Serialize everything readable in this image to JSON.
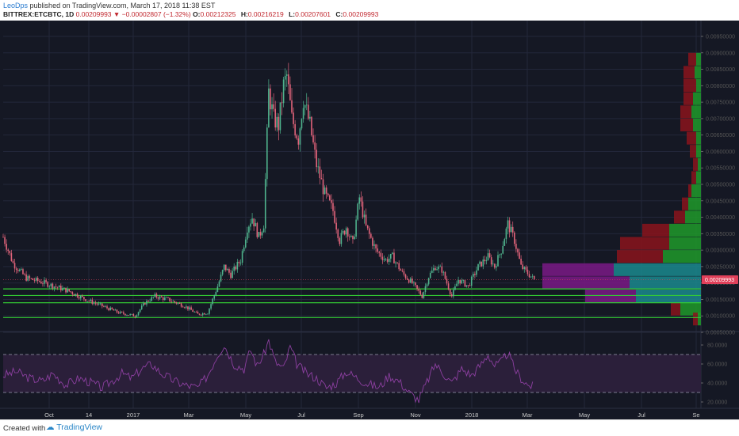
{
  "header": {
    "author": "LeoDps",
    "published": "published on TradingView.com, March 17, 2018 11:38 EST",
    "symbol": "BITTREX:ETCBTC, 1D",
    "price": "0.00209993",
    "change_arrow": "▼",
    "change": "−0.00002807 (−1.32%)",
    "o_label": "O:",
    "o_value": "0.00212325",
    "h_label": "H:",
    "h_value": "0.00216219",
    "l_label": "L:",
    "l_value": "0.00207601",
    "c_label": "C:",
    "c_value": "0.00209993"
  },
  "footer": {
    "created_with": "Created with",
    "brand": "TradingView",
    "logo_icon": "tradingview-cloud-icon"
  },
  "colors": {
    "background": "#151824",
    "up": "#4fb38d",
    "down": "#e0637a",
    "support_lines": "#33cc33",
    "rsi_line": "#8c3fa0",
    "rsi_band": "#2b1f3a",
    "last_price_badge": "#e0405a"
  },
  "chart_data": [
    {
      "type": "candlestick",
      "symbol": "BITTREX:ETCBTC",
      "interval": "1D",
      "x_ticks": [
        "Oct",
        "14",
        "2017",
        "Mar",
        "May",
        "Jul",
        "Sep",
        "Nov",
        "2018",
        "Mar",
        "May",
        "Jul",
        "Se"
      ],
      "y_ticks": [
        "0.00950000",
        "0.00900000",
        "0.00850000",
        "0.00800000",
        "0.00750000",
        "0.00700000",
        "0.00650000",
        "0.00600000",
        "0.00550000",
        "0.00500000",
        "0.00450000",
        "0.00400000",
        "0.00350000",
        "0.00300000",
        "0.00250000",
        "0.00200000",
        "0.00150000",
        "0.00100000",
        "0.00050000"
      ],
      "y_range": [
        0.0005,
        0.0098
      ],
      "last_price": "0.00209993",
      "approx_close_path": [
        [
          0.0034,
          0
        ],
        [
          0.0026,
          6
        ],
        [
          0.00215,
          14
        ],
        [
          0.00205,
          22
        ],
        [
          0.00192,
          30
        ],
        [
          0.00175,
          40
        ],
        [
          0.0015,
          50
        ],
        [
          0.0013,
          60
        ],
        [
          0.0011,
          70
        ],
        [
          0.001,
          80
        ],
        [
          0.0014,
          86
        ],
        [
          0.0016,
          92
        ],
        [
          0.0015,
          100
        ],
        [
          0.0013,
          110
        ],
        [
          0.00105,
          118
        ],
        [
          0.0011,
          124
        ],
        [
          0.0019,
          130
        ],
        [
          0.0025,
          134
        ],
        [
          0.00225,
          138
        ],
        [
          0.0027,
          144
        ],
        [
          0.0037,
          148
        ],
        [
          0.004,
          151
        ],
        [
          0.0034,
          155
        ],
        [
          0.0038,
          158
        ],
        [
          0.0078,
          161
        ],
        [
          0.007,
          164
        ],
        [
          0.0068,
          167
        ],
        [
          0.008,
          170
        ],
        [
          0.0083,
          172
        ],
        [
          0.007,
          175
        ],
        [
          0.0064,
          179
        ],
        [
          0.0076,
          182
        ],
        [
          0.0068,
          186
        ],
        [
          0.0056,
          190
        ],
        [
          0.0047,
          195
        ],
        [
          0.0042,
          200
        ],
        [
          0.0033,
          204
        ],
        [
          0.0037,
          208
        ],
        [
          0.0032,
          212
        ],
        [
          0.0046,
          216
        ],
        [
          0.0037,
          220
        ],
        [
          0.003,
          226
        ],
        [
          0.0027,
          232
        ],
        [
          0.0028,
          236
        ],
        [
          0.0023,
          242
        ],
        [
          0.002,
          248
        ],
        [
          0.0016,
          254
        ],
        [
          0.0022,
          258
        ],
        [
          0.0025,
          262
        ],
        [
          0.0024,
          266
        ],
        [
          0.0016,
          272
        ],
        [
          0.0021,
          276
        ],
        [
          0.0019,
          282
        ],
        [
          0.0025,
          288
        ],
        [
          0.0028,
          294
        ],
        [
          0.0025,
          298
        ],
        [
          0.003,
          302
        ],
        [
          0.0038,
          306
        ],
        [
          0.0033,
          310
        ],
        [
          0.0025,
          314
        ],
        [
          0.0023,
          318
        ],
        [
          0.0021,
          322
        ]
      ],
      "support_levels": [
        0.00182,
        0.00162,
        0.0014,
        0.00095
      ],
      "volume_profile": [
        {
          "price": 0.0088,
          "up": 6,
          "down": 10
        },
        {
          "price": 0.0084,
          "up": 8,
          "down": 14
        },
        {
          "price": 0.008,
          "up": 6,
          "down": 16
        },
        {
          "price": 0.0076,
          "up": 10,
          "down": 12
        },
        {
          "price": 0.0072,
          "up": 12,
          "down": 14
        },
        {
          "price": 0.0068,
          "up": 10,
          "down": 16
        },
        {
          "price": 0.0064,
          "up": 6,
          "down": 12
        },
        {
          "price": 0.006,
          "up": 6,
          "down": 8
        },
        {
          "price": 0.0056,
          "up": 4,
          "down": 6
        },
        {
          "price": 0.0052,
          "up": 6,
          "down": 6
        },
        {
          "price": 0.0048,
          "up": 12,
          "down": 4
        },
        {
          "price": 0.0044,
          "up": 16,
          "down": 8
        },
        {
          "price": 0.004,
          "up": 20,
          "down": 14
        },
        {
          "price": 0.0036,
          "up": 40,
          "down": 34
        },
        {
          "price": 0.0032,
          "up": 40,
          "down": 62
        },
        {
          "price": 0.0028,
          "up": 48,
          "down": 58
        },
        {
          "price": 0.0024,
          "up": 110,
          "down": 90
        },
        {
          "price": 0.002,
          "up": 90,
          "down": 110
        },
        {
          "price": 0.0016,
          "up": 82,
          "down": 64
        },
        {
          "price": 0.0012,
          "up": 26,
          "down": 12
        },
        {
          "price": 0.0009,
          "up": 4,
          "down": 6
        }
      ]
    },
    {
      "type": "line",
      "indicator": "RSI",
      "y_ticks": [
        "80.0000",
        "60.0000",
        "40.0000",
        "20.0000"
      ],
      "y_range": [
        15,
        90
      ],
      "bands": [
        70,
        30
      ],
      "approx_values": [
        [
          48,
          0
        ],
        [
          52,
          8
        ],
        [
          45,
          16
        ],
        [
          42,
          24
        ],
        [
          50,
          30
        ],
        [
          38,
          38
        ],
        [
          45,
          46
        ],
        [
          40,
          54
        ],
        [
          35,
          60
        ],
        [
          42,
          66
        ],
        [
          50,
          72
        ],
        [
          45,
          78
        ],
        [
          55,
          84
        ],
        [
          60,
          90
        ],
        [
          50,
          96
        ],
        [
          42,
          104
        ],
        [
          38,
          110
        ],
        [
          35,
          118
        ],
        [
          48,
          124
        ],
        [
          70,
          130
        ],
        [
          80,
          134
        ],
        [
          60,
          140
        ],
        [
          55,
          146
        ],
        [
          75,
          150
        ],
        [
          58,
          154
        ],
        [
          70,
          158
        ],
        [
          85,
          161
        ],
        [
          62,
          165
        ],
        [
          55,
          170
        ],
        [
          78,
          174
        ],
        [
          60,
          178
        ],
        [
          50,
          184
        ],
        [
          45,
          190
        ],
        [
          35,
          196
        ],
        [
          40,
          202
        ],
        [
          52,
          208
        ],
        [
          46,
          214
        ],
        [
          40,
          220
        ],
        [
          35,
          228
        ],
        [
          48,
          234
        ],
        [
          42,
          240
        ],
        [
          30,
          246
        ],
        [
          22,
          252
        ],
        [
          45,
          258
        ],
        [
          60,
          262
        ],
        [
          52,
          266
        ],
        [
          40,
          272
        ],
        [
          55,
          278
        ],
        [
          48,
          284
        ],
        [
          60,
          290
        ],
        [
          70,
          294
        ],
        [
          58,
          298
        ],
        [
          62,
          302
        ],
        [
          72,
          306
        ],
        [
          55,
          310
        ],
        [
          45,
          314
        ],
        [
          38,
          318
        ],
        [
          36,
          322
        ]
      ]
    }
  ]
}
